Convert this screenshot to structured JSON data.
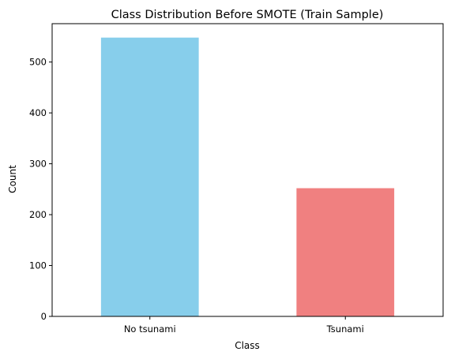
{
  "chart_data": {
    "type": "bar",
    "title": "Class Distribution Before SMOTE (Train Sample)",
    "xlabel": "Class",
    "ylabel": "Count",
    "categories": [
      "No tsunami",
      "Tsunami"
    ],
    "values": [
      548,
      252
    ],
    "colors": [
      "#87ceeb",
      "#f08080"
    ],
    "ylim": [
      0,
      575.4
    ],
    "yticks": [
      0,
      100,
      200,
      300,
      400,
      500
    ],
    "grid": false,
    "legend": false
  }
}
